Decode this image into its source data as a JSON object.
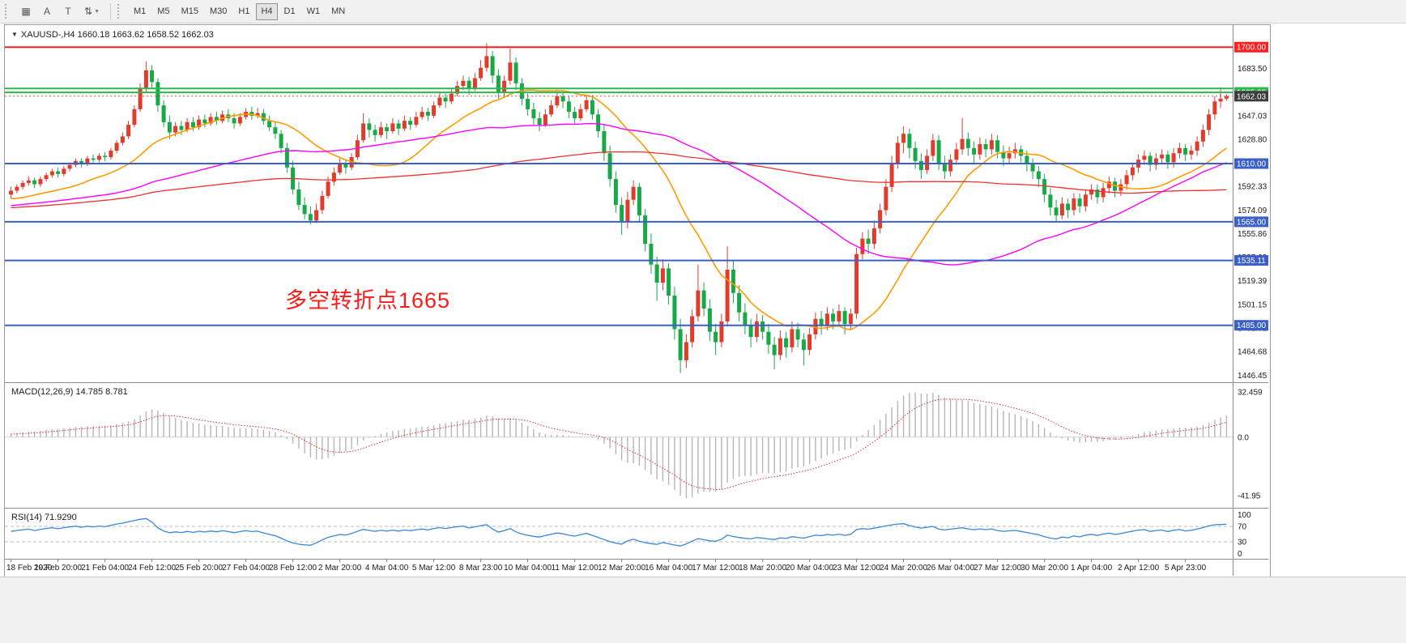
{
  "toolbar": {
    "tools": [
      {
        "name": "grid-tool",
        "glyph": "▦",
        "caret": false
      },
      {
        "name": "pointer-tool",
        "glyph": "A",
        "caret": false
      },
      {
        "name": "text-tool",
        "glyph": "T",
        "caret": false
      },
      {
        "name": "scale-tool",
        "glyph": "⇅",
        "caret": true
      }
    ],
    "timeframes": [
      "M1",
      "M5",
      "M15",
      "M30",
      "H1",
      "H4",
      "D1",
      "W1",
      "MN"
    ],
    "active_timeframe": "H4"
  },
  "header": {
    "collapse_glyph": "▼",
    "symbol_info": "XAUUSD-,H4  1660.18 1663.62 1658.52 1662.03"
  },
  "indicators": {
    "macd_label": "MACD(12,26,9) 14.785 8.781",
    "rsi_label": "RSI(14) 71.9290"
  },
  "annotation": {
    "text": "多空转折点1665",
    "color": "#ff1a1a"
  },
  "chart_data": {
    "type": "candlestick",
    "symbol": "XAUUSD-",
    "timeframe": "H4",
    "ohlc_display": {
      "open": "1660.18",
      "high": "1663.62",
      "low": "1658.52",
      "close": "1662.03"
    },
    "up_color": "#e03c2d",
    "down_color": "#17a948",
    "price_domain": [
      1441,
      1717
    ],
    "price_scale_labels": [
      "1683.50",
      "1665.27",
      "1647.03",
      "1628.80",
      "1610.56",
      "1592.33",
      "1574.09",
      "1555.86",
      "1537.62",
      "1519.39",
      "1501.15",
      "1482.92",
      "1464.68",
      "1446.45"
    ],
    "time_labels": [
      "18 Feb 2020",
      "19 Feb 20:00",
      "21 Feb 04:00",
      "24 Feb 12:00",
      "25 Feb 20:00",
      "27 Feb 04:00",
      "28 Feb 12:00",
      "2 Mar 20:00",
      "4 Mar 04:00",
      "5 Mar 12:00",
      "8 Mar 23:00",
      "10 Mar 04:00",
      "11 Mar 12:00",
      "12 Mar 20:00",
      "16 Mar 04:00",
      "17 Mar 12:00",
      "18 Mar 20:00",
      "20 Mar 04:00",
      "23 Mar 12:00",
      "24 Mar 20:00",
      "26 Mar 04:00",
      "27 Mar 12:00",
      "30 Mar 20:00",
      "1 Apr 04:00",
      "2 Apr 12:00",
      "5 Apr 23:00"
    ],
    "candles_per_label": 8,
    "hlines": [
      {
        "price": 1700.0,
        "label": "1700.00",
        "color": "#ff1f1f",
        "width": 2,
        "badge": true
      },
      {
        "price": 1668.0,
        "label": "",
        "color": "#2db84d",
        "width": 2,
        "badge": false
      },
      {
        "price": 1665.0,
        "label": "1665.00",
        "color": "#2db84d",
        "width": 2,
        "badge": true
      },
      {
        "price": 1610.0,
        "label": "1610.00",
        "color": "#3a5fc8",
        "width": 2,
        "badge": true
      },
      {
        "price": 1565.0,
        "label": "1565.00",
        "color": "#3a5fc8",
        "width": 2,
        "badge": true
      },
      {
        "price": 1535.11,
        "label": "1535.11",
        "color": "#3a5fc8",
        "width": 2,
        "badge": true
      },
      {
        "price": 1485.0,
        "label": "1485.00",
        "color": "#3a5fc8",
        "width": 2,
        "badge": true
      }
    ],
    "current_price": {
      "value": 1662.03,
      "label": "1662.03",
      "badge_color": "#3c3c3c",
      "line_color": "#cc5555"
    },
    "moving_averages": [
      {
        "name": "ma-fast",
        "period": 20,
        "color": "#ff9b00",
        "width": 1.6
      },
      {
        "name": "ma-mid",
        "period": 60,
        "color": "#ff00ff",
        "width": 1.4
      },
      {
        "name": "ma-slow",
        "period": 144,
        "color": "#f03030",
        "width": 1.3
      }
    ],
    "macd": {
      "params": [
        12,
        26,
        9
      ],
      "display_values": [
        "14.785",
        "8.781"
      ],
      "scale_labels": [
        "32.459",
        "0.0",
        "-41.95"
      ],
      "hist_color": "#b6b6b6",
      "signal_color": "#e03030"
    },
    "rsi": {
      "period": 14,
      "display_value": "71.9290",
      "scale_labels": [
        "100",
        "70",
        "30",
        "0"
      ],
      "levels": [
        70,
        30
      ],
      "line_color": "#3a87d8"
    },
    "prehistory": [
      1552,
      1556,
      1560,
      1557,
      1562,
      1566,
      1563,
      1568,
      1571,
      1567,
      1572,
      1575,
      1570,
      1574,
      1578,
      1573,
      1577,
      1581,
      1576,
      1580,
      1584,
      1579,
      1575,
      1571,
      1574,
      1578,
      1582,
      1577,
      1573,
      1576,
      1580,
      1575,
      1570,
      1566,
      1570,
      1574,
      1569,
      1573,
      1577,
      1572,
      1576,
      1580,
      1584,
      1579,
      1583,
      1587,
      1582,
      1578,
      1574,
      1578,
      1582,
      1586,
      1581,
      1585,
      1589,
      1584,
      1580,
      1576,
      1580,
      1584,
      1588,
      1583,
      1587,
      1584
    ],
    "candles": [
      [
        1586,
        1592,
        1583,
        1589
      ],
      [
        1589,
        1594,
        1587,
        1592
      ],
      [
        1592,
        1597,
        1590,
        1595
      ],
      [
        1595,
        1600,
        1593,
        1597
      ],
      [
        1597,
        1599,
        1591,
        1594
      ],
      [
        1594,
        1600,
        1592,
        1598
      ],
      [
        1598,
        1603,
        1596,
        1601
      ],
      [
        1601,
        1606,
        1599,
        1604
      ],
      [
        1604,
        1607,
        1599,
        1602
      ],
      [
        1602,
        1608,
        1600,
        1606
      ],
      [
        1606,
        1611,
        1604,
        1609
      ],
      [
        1609,
        1614,
        1607,
        1612
      ],
      [
        1612,
        1614,
        1607,
        1610
      ],
      [
        1610,
        1616,
        1608,
        1614
      ],
      [
        1614,
        1617,
        1611,
        1613
      ],
      [
        1613,
        1618,
        1611,
        1616
      ],
      [
        1616,
        1619,
        1612,
        1615
      ],
      [
        1615,
        1622,
        1613,
        1620
      ],
      [
        1620,
        1628,
        1618,
        1626
      ],
      [
        1626,
        1634,
        1624,
        1631
      ],
      [
        1631,
        1643,
        1629,
        1640
      ],
      [
        1640,
        1655,
        1638,
        1652
      ],
      [
        1652,
        1672,
        1650,
        1668
      ],
      [
        1668,
        1689,
        1665,
        1682
      ],
      [
        1682,
        1686,
        1668,
        1673
      ],
      [
        1673,
        1676,
        1650,
        1655
      ],
      [
        1655,
        1659,
        1638,
        1642
      ],
      [
        1642,
        1647,
        1629,
        1634
      ],
      [
        1634,
        1642,
        1631,
        1639
      ],
      [
        1639,
        1643,
        1632,
        1636
      ],
      [
        1636,
        1645,
        1634,
        1642
      ],
      [
        1642,
        1646,
        1635,
        1638
      ],
      [
        1638,
        1647,
        1636,
        1644
      ],
      [
        1644,
        1648,
        1638,
        1641
      ],
      [
        1641,
        1649,
        1639,
        1646
      ],
      [
        1646,
        1650,
        1640,
        1643
      ],
      [
        1643,
        1651,
        1641,
        1648
      ],
      [
        1648,
        1652,
        1642,
        1645
      ],
      [
        1645,
        1649,
        1637,
        1641
      ],
      [
        1641,
        1649,
        1639,
        1646
      ],
      [
        1646,
        1653,
        1644,
        1650
      ],
      [
        1650,
        1654,
        1644,
        1647
      ],
      [
        1647,
        1653,
        1645,
        1649
      ],
      [
        1649,
        1652,
        1640,
        1643
      ],
      [
        1643,
        1647,
        1635,
        1638
      ],
      [
        1638,
        1642,
        1629,
        1633
      ],
      [
        1633,
        1636,
        1618,
        1622
      ],
      [
        1622,
        1626,
        1603,
        1607
      ],
      [
        1607,
        1612,
        1586,
        1590
      ],
      [
        1590,
        1596,
        1574,
        1578
      ],
      [
        1578,
        1584,
        1567,
        1571
      ],
      [
        1571,
        1577,
        1563,
        1566
      ],
      [
        1566,
        1579,
        1564,
        1574
      ],
      [
        1574,
        1589,
        1571,
        1585
      ],
      [
        1585,
        1600,
        1583,
        1596
      ],
      [
        1596,
        1607,
        1593,
        1603
      ],
      [
        1603,
        1614,
        1601,
        1610
      ],
      [
        1610,
        1613,
        1602,
        1607
      ],
      [
        1607,
        1618,
        1605,
        1615
      ],
      [
        1615,
        1632,
        1613,
        1628
      ],
      [
        1628,
        1649,
        1626,
        1641
      ],
      [
        1641,
        1645,
        1630,
        1636
      ],
      [
        1636,
        1640,
        1627,
        1632
      ],
      [
        1632,
        1642,
        1630,
        1638
      ],
      [
        1638,
        1641,
        1629,
        1635
      ],
      [
        1635,
        1645,
        1633,
        1641
      ],
      [
        1641,
        1644,
        1632,
        1637
      ],
      [
        1637,
        1647,
        1635,
        1643
      ],
      [
        1643,
        1646,
        1636,
        1640
      ],
      [
        1640,
        1650,
        1638,
        1646
      ],
      [
        1646,
        1654,
        1644,
        1650
      ],
      [
        1650,
        1653,
        1643,
        1647
      ],
      [
        1647,
        1658,
        1645,
        1655
      ],
      [
        1655,
        1665,
        1653,
        1661
      ],
      [
        1661,
        1664,
        1653,
        1658
      ],
      [
        1658,
        1668,
        1656,
        1664
      ],
      [
        1664,
        1674,
        1662,
        1670
      ],
      [
        1670,
        1678,
        1667,
        1674
      ],
      [
        1674,
        1677,
        1663,
        1668
      ],
      [
        1668,
        1680,
        1666,
        1676
      ],
      [
        1676,
        1690,
        1674,
        1684
      ],
      [
        1684,
        1703,
        1681,
        1693
      ],
      [
        1693,
        1697,
        1672,
        1678
      ],
      [
        1678,
        1683,
        1660,
        1665
      ],
      [
        1665,
        1678,
        1662,
        1674
      ],
      [
        1674,
        1699,
        1671,
        1688
      ],
      [
        1688,
        1692,
        1667,
        1672
      ],
      [
        1672,
        1676,
        1655,
        1660
      ],
      [
        1660,
        1664,
        1647,
        1652
      ],
      [
        1652,
        1657,
        1640,
        1645
      ],
      [
        1645,
        1650,
        1635,
        1640
      ],
      [
        1640,
        1652,
        1638,
        1648
      ],
      [
        1648,
        1659,
        1646,
        1655
      ],
      [
        1655,
        1667,
        1653,
        1662
      ],
      [
        1662,
        1666,
        1653,
        1658
      ],
      [
        1658,
        1662,
        1645,
        1650
      ],
      [
        1650,
        1654,
        1640,
        1645
      ],
      [
        1645,
        1656,
        1643,
        1652
      ],
      [
        1652,
        1663,
        1650,
        1659
      ],
      [
        1659,
        1663,
        1644,
        1648
      ],
      [
        1648,
        1652,
        1630,
        1635
      ],
      [
        1635,
        1640,
        1612,
        1618
      ],
      [
        1618,
        1624,
        1592,
        1598
      ],
      [
        1598,
        1604,
        1572,
        1578
      ],
      [
        1578,
        1584,
        1555,
        1565
      ],
      [
        1565,
        1588,
        1560,
        1582
      ],
      [
        1582,
        1597,
        1578,
        1592
      ],
      [
        1592,
        1595,
        1565,
        1570
      ],
      [
        1570,
        1575,
        1542,
        1548
      ],
      [
        1548,
        1556,
        1525,
        1532
      ],
      [
        1532,
        1538,
        1504,
        1518
      ],
      [
        1518,
        1536,
        1512,
        1529
      ],
      [
        1529,
        1533,
        1501,
        1508
      ],
      [
        1508,
        1515,
        1474,
        1482
      ],
      [
        1482,
        1490,
        1448,
        1458
      ],
      [
        1458,
        1478,
        1452,
        1472
      ],
      [
        1472,
        1497,
        1468,
        1492
      ],
      [
        1492,
        1532,
        1488,
        1512
      ],
      [
        1512,
        1518,
        1492,
        1498
      ],
      [
        1498,
        1505,
        1473,
        1480
      ],
      [
        1480,
        1486,
        1462,
        1472
      ],
      [
        1472,
        1494,
        1468,
        1488
      ],
      [
        1488,
        1546,
        1484,
        1528
      ],
      [
        1528,
        1535,
        1502,
        1510
      ],
      [
        1510,
        1516,
        1488,
        1495
      ],
      [
        1495,
        1502,
        1478,
        1485
      ],
      [
        1485,
        1490,
        1468,
        1476
      ],
      [
        1476,
        1494,
        1472,
        1488
      ],
      [
        1488,
        1493,
        1474,
        1480
      ],
      [
        1480,
        1486,
        1463,
        1470
      ],
      [
        1470,
        1476,
        1451,
        1462
      ],
      [
        1462,
        1481,
        1458,
        1475
      ],
      [
        1475,
        1480,
        1460,
        1468
      ],
      [
        1468,
        1488,
        1464,
        1482
      ],
      [
        1482,
        1487,
        1468,
        1474
      ],
      [
        1474,
        1479,
        1454,
        1466
      ],
      [
        1466,
        1483,
        1462,
        1478
      ],
      [
        1478,
        1495,
        1474,
        1490
      ],
      [
        1490,
        1496,
        1478,
        1485
      ],
      [
        1485,
        1499,
        1481,
        1494
      ],
      [
        1494,
        1498,
        1482,
        1488
      ],
      [
        1488,
        1501,
        1484,
        1496
      ],
      [
        1496,
        1499,
        1478,
        1486
      ],
      [
        1486,
        1498,
        1482,
        1494
      ],
      [
        1494,
        1545,
        1490,
        1540
      ],
      [
        1540,
        1557,
        1536,
        1552
      ],
      [
        1552,
        1559,
        1540,
        1548
      ],
      [
        1548,
        1566,
        1544,
        1560
      ],
      [
        1560,
        1579,
        1556,
        1574
      ],
      [
        1574,
        1598,
        1570,
        1592
      ],
      [
        1592,
        1616,
        1588,
        1610
      ],
      [
        1610,
        1631,
        1606,
        1626
      ],
      [
        1626,
        1639,
        1618,
        1633
      ],
      [
        1633,
        1637,
        1614,
        1622
      ],
      [
        1622,
        1627,
        1606,
        1612
      ],
      [
        1612,
        1618,
        1598,
        1605
      ],
      [
        1605,
        1621,
        1602,
        1616
      ],
      [
        1616,
        1633,
        1612,
        1628
      ],
      [
        1628,
        1632,
        1605,
        1610
      ],
      [
        1610,
        1616,
        1598,
        1604
      ],
      [
        1604,
        1617,
        1600,
        1613
      ],
      [
        1613,
        1626,
        1609,
        1621
      ],
      [
        1621,
        1645,
        1617,
        1629
      ],
      [
        1629,
        1634,
        1616,
        1622
      ],
      [
        1622,
        1627,
        1610,
        1617
      ],
      [
        1617,
        1630,
        1613,
        1625
      ],
      [
        1625,
        1629,
        1615,
        1621
      ],
      [
        1621,
        1633,
        1617,
        1628
      ],
      [
        1628,
        1632,
        1614,
        1619
      ],
      [
        1619,
        1624,
        1608,
        1614
      ],
      [
        1614,
        1623,
        1610,
        1618
      ],
      [
        1618,
        1626,
        1614,
        1621
      ],
      [
        1621,
        1624,
        1611,
        1616
      ],
      [
        1616,
        1620,
        1604,
        1610
      ],
      [
        1610,
        1614,
        1598,
        1604
      ],
      [
        1604,
        1608,
        1592,
        1598
      ],
      [
        1598,
        1602,
        1580,
        1586
      ],
      [
        1586,
        1591,
        1570,
        1576
      ],
      [
        1576,
        1582,
        1565,
        1570
      ],
      [
        1570,
        1584,
        1567,
        1579
      ],
      [
        1579,
        1583,
        1568,
        1574
      ],
      [
        1574,
        1587,
        1570,
        1583
      ],
      [
        1583,
        1587,
        1572,
        1577
      ],
      [
        1577,
        1590,
        1573,
        1586
      ],
      [
        1586,
        1594,
        1582,
        1590
      ],
      [
        1590,
        1594,
        1579,
        1584
      ],
      [
        1584,
        1595,
        1580,
        1591
      ],
      [
        1591,
        1600,
        1587,
        1596
      ],
      [
        1596,
        1599,
        1584,
        1589
      ],
      [
        1589,
        1598,
        1585,
        1594
      ],
      [
        1594,
        1605,
        1590,
        1601
      ],
      [
        1601,
        1611,
        1597,
        1607
      ],
      [
        1607,
        1617,
        1603,
        1613
      ],
      [
        1613,
        1620,
        1609,
        1616
      ],
      [
        1616,
        1619,
        1604,
        1609
      ],
      [
        1609,
        1618,
        1605,
        1614
      ],
      [
        1614,
        1621,
        1610,
        1617
      ],
      [
        1617,
        1620,
        1606,
        1611
      ],
      [
        1611,
        1622,
        1607,
        1618
      ],
      [
        1618,
        1626,
        1614,
        1622
      ],
      [
        1622,
        1625,
        1612,
        1617
      ],
      [
        1617,
        1624,
        1613,
        1620
      ],
      [
        1620,
        1631,
        1616,
        1627
      ],
      [
        1627,
        1640,
        1623,
        1636
      ],
      [
        1636,
        1652,
        1632,
        1648
      ],
      [
        1648,
        1662,
        1644,
        1658
      ],
      [
        1658,
        1669,
        1653,
        1660.2
      ],
      [
        1660.2,
        1663.6,
        1658.5,
        1662
      ]
    ]
  }
}
